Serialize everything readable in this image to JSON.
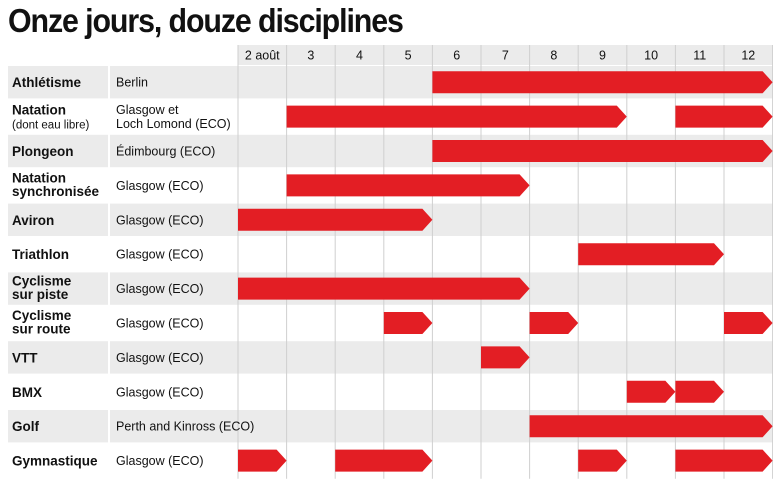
{
  "chart_data": {
    "type": "gantt",
    "title": "Onze jours, douze disciplines",
    "day_labels": [
      "2 août",
      "3",
      "4",
      "5",
      "6",
      "7",
      "8",
      "9",
      "10",
      "11",
      "12"
    ],
    "colors": {
      "bar": "#e31e24",
      "band": "#ebebeb",
      "grid": "#cfcfcf",
      "text": "#111111"
    },
    "rows": [
      {
        "discipline": [
          "Athlétisme"
        ],
        "sub": "",
        "location": [
          "Berlin"
        ],
        "segments": [
          [
            6,
            12
          ]
        ]
      },
      {
        "discipline": [
          "Natation"
        ],
        "sub": "(dont eau libre)",
        "location": [
          "Glasgow et",
          "Loch Lomond (ECO)"
        ],
        "segments": [
          [
            3,
            9
          ],
          [
            11,
            12
          ]
        ]
      },
      {
        "discipline": [
          "Plongeon"
        ],
        "sub": "",
        "location": [
          "Édimbourg (ECO)"
        ],
        "segments": [
          [
            6,
            12
          ]
        ]
      },
      {
        "discipline": [
          "Natation",
          "synchronisée"
        ],
        "sub": "",
        "location": [
          "Glasgow (ECO)"
        ],
        "segments": [
          [
            3,
            7
          ]
        ]
      },
      {
        "discipline": [
          "Aviron"
        ],
        "sub": "",
        "location": [
          "Glasgow (ECO)"
        ],
        "segments": [
          [
            2,
            5
          ]
        ]
      },
      {
        "discipline": [
          "Triathlon"
        ],
        "sub": "",
        "location": [
          "Glasgow (ECO)"
        ],
        "segments": [
          [
            9,
            11
          ]
        ]
      },
      {
        "discipline": [
          "Cyclisme",
          "sur piste"
        ],
        "sub": "",
        "location": [
          "Glasgow (ECO)"
        ],
        "segments": [
          [
            2,
            7
          ]
        ]
      },
      {
        "discipline": [
          "Cyclisme",
          "sur route"
        ],
        "sub": "",
        "location": [
          "Glasgow (ECO)"
        ],
        "segments": [
          [
            5,
            5
          ],
          [
            8,
            8
          ],
          [
            12,
            12
          ]
        ]
      },
      {
        "discipline": [
          "VTT"
        ],
        "sub": "",
        "location": [
          "Glasgow (ECO)"
        ],
        "segments": [
          [
            7,
            7
          ]
        ]
      },
      {
        "discipline": [
          "BMX"
        ],
        "sub": "",
        "location": [
          "Glasgow (ECO)"
        ],
        "segments": [
          [
            10,
            10
          ],
          [
            11,
            11
          ]
        ]
      },
      {
        "discipline": [
          "Golf"
        ],
        "sub": "",
        "location": [
          "Perth and Kinross (ECO)"
        ],
        "segments": [
          [
            8,
            12
          ]
        ]
      },
      {
        "discipline": [
          "Gymnastique"
        ],
        "sub": "",
        "location": [
          "Glasgow (ECO)"
        ],
        "segments": [
          [
            2,
            2
          ],
          [
            4,
            5
          ],
          [
            9,
            9
          ],
          [
            11,
            12
          ]
        ]
      }
    ]
  }
}
